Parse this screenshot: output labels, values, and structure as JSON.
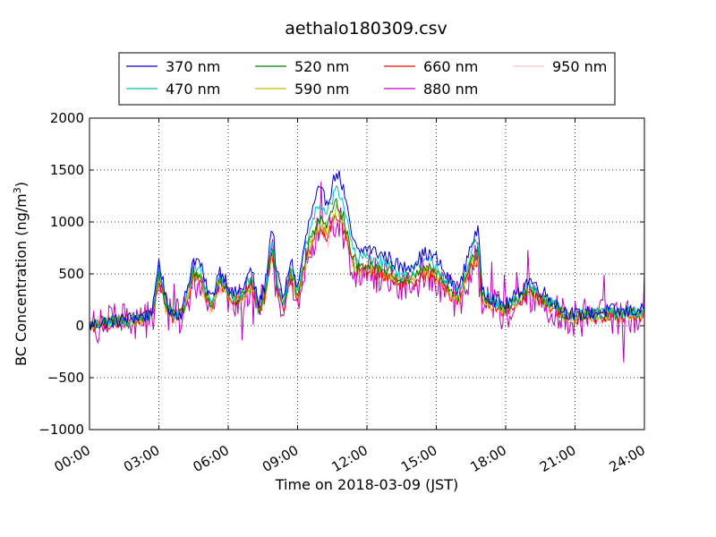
{
  "chart_data": {
    "type": "line",
    "title": "aethalo180309.csv",
    "xlabel": "Time on 2018-03-09 (JST)",
    "ylabel": "BC Concentration (ng/m³)",
    "ylabel_main": "BC Concentration (ng/m",
    "ylabel_sup": "3",
    "ylabel_end": ")",
    "xlim": [
      "00:00",
      "24:00"
    ],
    "ylim": [
      -1000,
      2000
    ],
    "xticks": [
      "00:00",
      "03:00",
      "06:00",
      "09:00",
      "12:00",
      "15:00",
      "18:00",
      "21:00",
      "24:00"
    ],
    "yticks": [
      "−1000",
      "−500",
      "0",
      "500",
      "1000",
      "1500",
      "2000"
    ],
    "grid": true,
    "legend_position": "top-center",
    "series": [
      {
        "name": "370 nm",
        "color": "#0000cc"
      },
      {
        "name": "470 nm",
        "color": "#00bfbf"
      },
      {
        "name": "520 nm",
        "color": "#008000"
      },
      {
        "name": "590 nm",
        "color": "#bfbf00"
      },
      {
        "name": "660 nm",
        "color": "#ff0000"
      },
      {
        "name": "880 nm",
        "color": "#bf00bf"
      },
      {
        "name": "950 nm",
        "color": "#ffc0cb"
      }
    ],
    "profile": {
      "hours": [
        0,
        0.5,
        1,
        1.5,
        2,
        2.5,
        2.8,
        3,
        3.3,
        3.6,
        4,
        4.5,
        4.8,
        5,
        5.3,
        5.6,
        5.9,
        6.2,
        6.6,
        7,
        7.3,
        7.6,
        7.9,
        8.1,
        8.4,
        8.7,
        9,
        9.2,
        9.5,
        9.9,
        10.3,
        10.7,
        11,
        11.3,
        11.6,
        12,
        12.5,
        13,
        13.5,
        14,
        14.5,
        15,
        15.5,
        16,
        16.5,
        16.8,
        17,
        17.5,
        18,
        18.5,
        19,
        19.5,
        20,
        20.5,
        21,
        21.5,
        22,
        22.5,
        23,
        23.5,
        24
      ],
      "bc_370nm": [
        0,
        30,
        40,
        60,
        80,
        100,
        200,
        650,
        250,
        120,
        130,
        650,
        600,
        400,
        250,
        550,
        450,
        300,
        350,
        550,
        200,
        400,
        1000,
        500,
        250,
        650,
        350,
        650,
        1000,
        1300,
        1200,
        1500,
        1300,
        900,
        700,
        750,
        700,
        650,
        550,
        600,
        700,
        650,
        450,
        350,
        800,
        900,
        350,
        250,
        200,
        300,
        450,
        350,
        250,
        150,
        100,
        120,
        130,
        150,
        130,
        150,
        150
      ]
    }
  }
}
